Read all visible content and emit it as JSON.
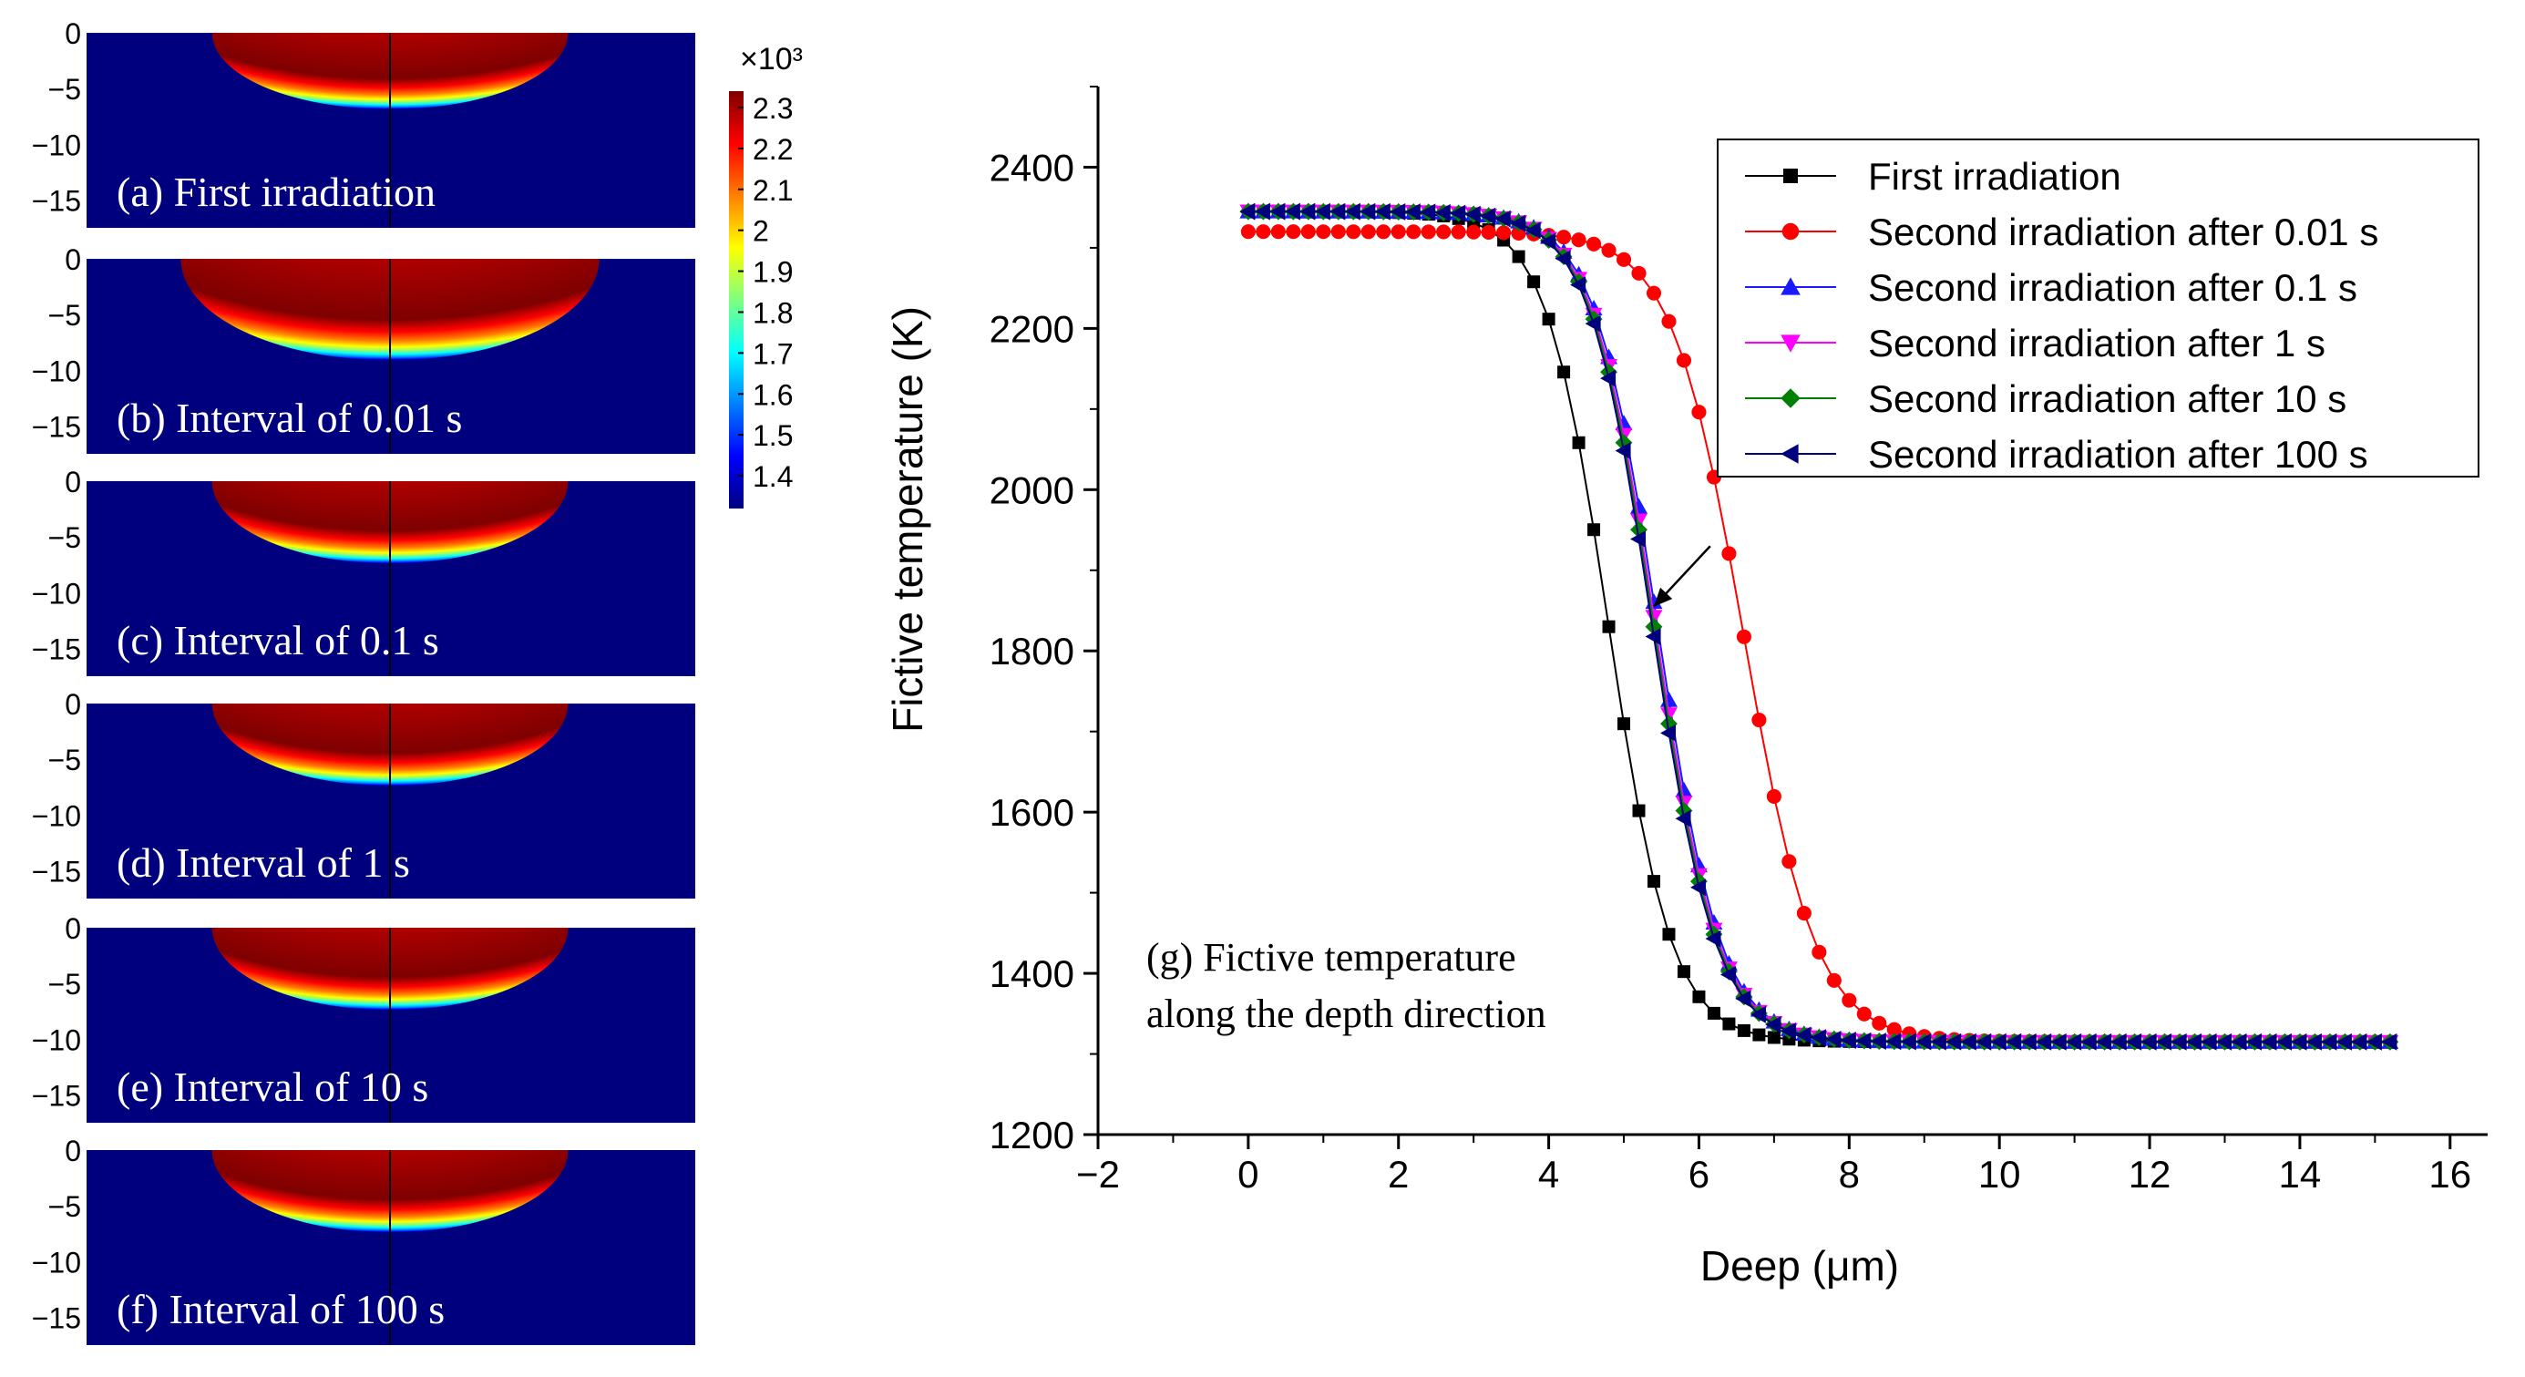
{
  "panels": [
    {
      "label": "(a) First irradiation",
      "half_width": 148,
      "depth": 5.2
    },
    {
      "label": "(b) Interval of 0.01 s",
      "half_width": 174,
      "depth": 6.9
    },
    {
      "label": "(c) Interval of 0.1 s",
      "half_width": 148,
      "depth": 5.6
    },
    {
      "label": "(d) Interval of 1 s",
      "half_width": 148,
      "depth": 5.6
    },
    {
      "label": "(e) Interval of 10 s",
      "half_width": 148,
      "depth": 5.6
    },
    {
      "label": "(f) Interval of 100 s",
      "half_width": 148,
      "depth": 5.6
    }
  ],
  "panel_axis": {
    "y_ticks": [
      "0",
      "−5",
      "−10",
      "−15"
    ],
    "y_values": [
      0,
      -5,
      -10,
      -15
    ],
    "y_range": [
      0,
      -17.5
    ]
  },
  "colorbar": {
    "exponent_label": "×10³",
    "ticks": [
      "2.3",
      "2.2",
      "2.1",
      "2",
      "1.9",
      "1.8",
      "1.7",
      "1.6",
      "1.5",
      "1.4"
    ],
    "values": [
      2.3,
      2.2,
      2.1,
      2.0,
      1.9,
      1.8,
      1.7,
      1.6,
      1.5,
      1.4
    ],
    "min": 1.32,
    "max": 2.34,
    "colors": [
      "#00007f",
      "#0000ff",
      "#007fff",
      "#00ffff",
      "#7fff7f",
      "#ffff00",
      "#ff7f00",
      "#ff0000",
      "#7f0000"
    ]
  },
  "chart_data": {
    "type": "line",
    "xlabel": "Deep (μm)",
    "ylabel": "Fictive temperature (K)",
    "xlim": [
      -2,
      16.5
    ],
    "ylim": [
      1200,
      2500
    ],
    "x_ticks": [
      -2,
      0,
      2,
      4,
      6,
      8,
      10,
      12,
      14,
      16
    ],
    "x_tick_labels": [
      "−2",
      "0",
      "2",
      "4",
      "6",
      "8",
      "10",
      "12",
      "14",
      "16"
    ],
    "y_ticks": [
      1200,
      1400,
      1600,
      1800,
      2000,
      2200,
      2400
    ],
    "y_tick_labels": [
      "1200",
      "1400",
      "1600",
      "1800",
      "2000",
      "2200",
      "2400"
    ],
    "x_start": 0,
    "x_end": 15.2,
    "x_step": 0.2,
    "annotation": {
      "line1": "(g) Fictive temperature",
      "line2": "along the depth direction",
      "arrow_from": [
        6.15,
        1930
      ],
      "arrow_to": [
        5.4,
        1855
      ]
    },
    "series": [
      {
        "name": "First irradiation",
        "color": "#000000",
        "marker": "square",
        "t_high": 2345,
        "t_low": 1315,
        "center": 4.8,
        "width": 0.42
      },
      {
        "name": "Second irradiation after 0.01 s",
        "color": "#ff0000",
        "marker": "circle",
        "t_high": 2320,
        "t_low": 1315,
        "center": 6.6,
        "width": 0.48
      },
      {
        "name": "Second irradiation after 0.1 s",
        "color": "#1a1aff",
        "marker": "triangle-up",
        "t_high": 2345,
        "t_low": 1315,
        "center": 5.45,
        "width": 0.42
      },
      {
        "name": "Second irradiation after 1 s",
        "color": "#ff00ff",
        "marker": "triangle-down",
        "t_high": 2345,
        "t_low": 1315,
        "center": 5.42,
        "width": 0.42
      },
      {
        "name": "Second irradiation after 10 s",
        "color": "#008000",
        "marker": "diamond",
        "t_high": 2345,
        "t_low": 1315,
        "center": 5.4,
        "width": 0.42
      },
      {
        "name": "Second irradiation after 100 s",
        "color": "#00007f",
        "marker": "triangle-left",
        "t_high": 2345,
        "t_low": 1315,
        "center": 5.38,
        "width": 0.42
      }
    ]
  }
}
